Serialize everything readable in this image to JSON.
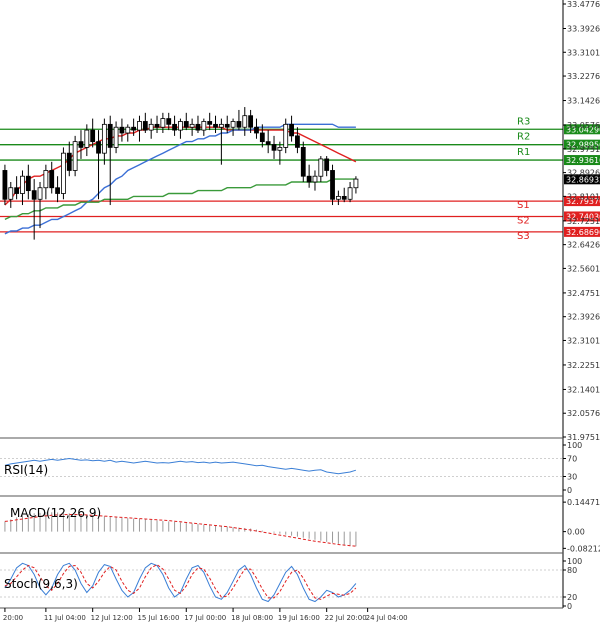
{
  "chart_data": [
    {
      "type": "candlestick",
      "panel": "price",
      "y_ticks": [
        "33.47760",
        "33.39260",
        "33.31010",
        "33.22760",
        "33.14260",
        "33.05760",
        "32.97510",
        "32.89260",
        "32.81010",
        "32.72510",
        "32.64260",
        "32.56010",
        "32.47510",
        "32.39260",
        "32.31010",
        "32.22510",
        "32.14010",
        "32.05760",
        "31.97510"
      ],
      "ylim": [
        31.9751,
        33.4776
      ],
      "levels": [
        {
          "name": "R3",
          "value": 33.0429,
          "label": "33.04290",
          "color": "#1a8a1a"
        },
        {
          "name": "R2",
          "value": 32.9895,
          "label": "32.98950",
          "color": "#1a8a1a"
        },
        {
          "name": "R1",
          "value": 32.9361,
          "label": "32.93610",
          "color": "#1a8a1a"
        },
        {
          "name": "S1",
          "value": 32.7937,
          "label": "32.79370",
          "color": "#e02020"
        },
        {
          "name": "S2",
          "value": 32.7403,
          "label": "32.74030",
          "color": "#e02020"
        },
        {
          "name": "S3",
          "value": 32.6869,
          "label": "32.68690",
          "color": "#e02020"
        }
      ],
      "current_price": {
        "value": 32.8693,
        "label": "32.86932"
      },
      "candles": [
        {
          "o": 32.9,
          "h": 32.92,
          "l": 32.78,
          "c": 32.8
        },
        {
          "o": 32.8,
          "h": 32.86,
          "l": 32.77,
          "c": 32.84
        },
        {
          "o": 32.84,
          "h": 32.88,
          "l": 32.8,
          "c": 32.82
        },
        {
          "o": 32.82,
          "h": 32.9,
          "l": 32.78,
          "c": 32.88
        },
        {
          "o": 32.88,
          "h": 32.92,
          "l": 32.8,
          "c": 32.83
        },
        {
          "o": 32.83,
          "h": 32.87,
          "l": 32.66,
          "c": 32.8
        },
        {
          "o": 32.8,
          "h": 32.86,
          "l": 32.7,
          "c": 32.84
        },
        {
          "o": 32.84,
          "h": 32.92,
          "l": 32.8,
          "c": 32.9
        },
        {
          "o": 32.9,
          "h": 32.93,
          "l": 32.82,
          "c": 32.84
        },
        {
          "o": 32.84,
          "h": 32.88,
          "l": 32.79,
          "c": 32.82
        },
        {
          "o": 32.82,
          "h": 32.98,
          "l": 32.8,
          "c": 32.96
        },
        {
          "o": 32.96,
          "h": 33.0,
          "l": 32.88,
          "c": 32.9
        },
        {
          "o": 32.9,
          "h": 33.02,
          "l": 32.88,
          "c": 33.0
        },
        {
          "o": 33.0,
          "h": 33.04,
          "l": 32.94,
          "c": 32.98
        },
        {
          "o": 32.98,
          "h": 33.06,
          "l": 32.95,
          "c": 33.04
        },
        {
          "o": 33.04,
          "h": 33.08,
          "l": 32.98,
          "c": 33.0
        },
        {
          "o": 33.0,
          "h": 33.04,
          "l": 32.8,
          "c": 32.96
        },
        {
          "o": 32.96,
          "h": 33.08,
          "l": 32.92,
          "c": 33.06
        },
        {
          "o": 33.06,
          "h": 33.09,
          "l": 32.78,
          "c": 32.98
        },
        {
          "o": 32.98,
          "h": 33.07,
          "l": 32.96,
          "c": 33.05
        },
        {
          "o": 33.05,
          "h": 33.08,
          "l": 33.0,
          "c": 33.03
        },
        {
          "o": 33.03,
          "h": 33.06,
          "l": 33.0,
          "c": 33.05
        },
        {
          "o": 33.05,
          "h": 33.08,
          "l": 33.02,
          "c": 33.04
        },
        {
          "o": 33.04,
          "h": 33.09,
          "l": 33.0,
          "c": 33.07
        },
        {
          "o": 33.07,
          "h": 33.1,
          "l": 33.03,
          "c": 33.04
        },
        {
          "o": 33.04,
          "h": 33.08,
          "l": 33.01,
          "c": 33.06
        },
        {
          "o": 33.06,
          "h": 33.09,
          "l": 33.03,
          "c": 33.05
        },
        {
          "o": 33.05,
          "h": 33.1,
          "l": 33.03,
          "c": 33.08
        },
        {
          "o": 33.08,
          "h": 33.1,
          "l": 33.04,
          "c": 33.06
        },
        {
          "o": 33.06,
          "h": 33.09,
          "l": 33.02,
          "c": 33.04
        },
        {
          "o": 33.04,
          "h": 33.08,
          "l": 33.01,
          "c": 33.07
        },
        {
          "o": 33.07,
          "h": 33.1,
          "l": 33.04,
          "c": 33.05
        },
        {
          "o": 33.05,
          "h": 33.08,
          "l": 33.02,
          "c": 33.06
        },
        {
          "o": 33.06,
          "h": 33.09,
          "l": 33.03,
          "c": 33.04
        },
        {
          "o": 33.04,
          "h": 33.08,
          "l": 33.02,
          "c": 33.07
        },
        {
          "o": 33.07,
          "h": 33.1,
          "l": 33.04,
          "c": 33.06
        },
        {
          "o": 33.06,
          "h": 33.09,
          "l": 33.03,
          "c": 33.05
        },
        {
          "o": 33.05,
          "h": 33.08,
          "l": 32.92,
          "c": 33.06
        },
        {
          "o": 33.06,
          "h": 33.09,
          "l": 33.03,
          "c": 33.05
        },
        {
          "o": 33.05,
          "h": 33.08,
          "l": 33.02,
          "c": 33.07
        },
        {
          "o": 33.07,
          "h": 33.11,
          "l": 33.04,
          "c": 33.05
        },
        {
          "o": 33.05,
          "h": 33.12,
          "l": 33.02,
          "c": 33.09
        },
        {
          "o": 33.09,
          "h": 33.11,
          "l": 33.03,
          "c": 33.05
        },
        {
          "o": 33.05,
          "h": 33.08,
          "l": 33.01,
          "c": 33.03
        },
        {
          "o": 33.03,
          "h": 33.06,
          "l": 32.98,
          "c": 33.0
        },
        {
          "o": 33.0,
          "h": 33.04,
          "l": 32.96,
          "c": 32.99
        },
        {
          "o": 32.99,
          "h": 33.02,
          "l": 32.94,
          "c": 32.97
        },
        {
          "o": 32.97,
          "h": 33.0,
          "l": 32.92,
          "c": 32.98
        },
        {
          "o": 32.98,
          "h": 33.08,
          "l": 32.96,
          "c": 33.06
        },
        {
          "o": 33.06,
          "h": 33.09,
          "l": 33.0,
          "c": 33.02
        },
        {
          "o": 33.02,
          "h": 33.05,
          "l": 32.96,
          "c": 32.98
        },
        {
          "o": 32.98,
          "h": 33.0,
          "l": 32.86,
          "c": 32.88
        },
        {
          "o": 32.88,
          "h": 32.92,
          "l": 32.84,
          "c": 32.86
        },
        {
          "o": 32.86,
          "h": 32.9,
          "l": 32.83,
          "c": 32.88
        },
        {
          "o": 32.88,
          "h": 32.95,
          "l": 32.86,
          "c": 32.94
        },
        {
          "o": 32.94,
          "h": 32.95,
          "l": 32.88,
          "c": 32.9
        },
        {
          "o": 32.9,
          "h": 32.92,
          "l": 32.78,
          "c": 32.8
        },
        {
          "o": 32.8,
          "h": 32.83,
          "l": 32.78,
          "c": 32.81
        },
        {
          "o": 32.81,
          "h": 32.84,
          "l": 32.79,
          "c": 32.8
        },
        {
          "o": 32.8,
          "h": 32.86,
          "l": 32.79,
          "c": 32.84
        },
        {
          "o": 32.84,
          "h": 32.88,
          "l": 32.82,
          "c": 32.87
        }
      ],
      "series": [
        {
          "color": "#e02020",
          "values": [
            32.78,
            32.8,
            32.83,
            32.85,
            32.87,
            32.88,
            32.88,
            32.89,
            32.9,
            32.91,
            32.92,
            32.94,
            32.96,
            32.97,
            32.98,
            32.99,
            33.0,
            33.01,
            33.01,
            33.02,
            33.02,
            33.03,
            33.03,
            33.04,
            33.04,
            33.05,
            33.05,
            33.05,
            33.05,
            33.05,
            33.05,
            33.05,
            33.05,
            33.05,
            33.05,
            33.05,
            33.05,
            33.05,
            33.04,
            33.04,
            33.04,
            33.04,
            33.04,
            33.04,
            33.04,
            33.04,
            33.04,
            33.04,
            33.04,
            33.03,
            33.03,
            33.02,
            33.01,
            33.0,
            32.99,
            32.98,
            32.97,
            32.96,
            32.95,
            32.94,
            32.93
          ]
        },
        {
          "color": "#3b6fd6",
          "values": [
            32.68,
            32.69,
            32.69,
            32.7,
            32.7,
            32.71,
            32.71,
            32.72,
            32.73,
            32.73,
            32.74,
            32.75,
            32.76,
            32.77,
            32.79,
            32.8,
            32.82,
            32.84,
            32.85,
            32.87,
            32.88,
            32.9,
            32.91,
            32.92,
            32.93,
            32.94,
            32.95,
            32.96,
            32.97,
            32.98,
            32.99,
            33.0,
            33.0,
            33.01,
            33.01,
            33.02,
            33.02,
            33.03,
            33.03,
            33.04,
            33.04,
            33.04,
            33.04,
            33.05,
            33.05,
            33.05,
            33.05,
            33.05,
            33.06,
            33.06,
            33.06,
            33.06,
            33.06,
            33.06,
            33.06,
            33.06,
            33.06,
            33.05,
            33.05,
            33.05,
            33.05
          ]
        },
        {
          "color": "#3a9a3a",
          "values": [
            32.73,
            32.74,
            32.74,
            32.75,
            32.75,
            32.76,
            32.76,
            32.77,
            32.77,
            32.77,
            32.78,
            32.78,
            32.78,
            32.79,
            32.79,
            32.79,
            32.79,
            32.8,
            32.8,
            32.8,
            32.8,
            32.8,
            32.81,
            32.81,
            32.81,
            32.81,
            32.81,
            32.81,
            32.82,
            32.82,
            32.82,
            32.82,
            32.82,
            32.83,
            32.83,
            32.83,
            32.83,
            32.83,
            32.84,
            32.84,
            32.84,
            32.84,
            32.84,
            32.85,
            32.85,
            32.85,
            32.85,
            32.85,
            32.85,
            32.86,
            32.86,
            32.86,
            32.86,
            32.86,
            32.86,
            32.86,
            32.87,
            32.87,
            32.87,
            32.87,
            32.87
          ]
        }
      ]
    },
    {
      "type": "line",
      "panel": "rsi",
      "title": "RSI(14)",
      "y_ticks": [
        "100",
        "70",
        "30",
        "0"
      ],
      "ylim": [
        0,
        100
      ],
      "series": [
        {
          "color": "#3b7fd6",
          "values": [
            55,
            58,
            60,
            62,
            64,
            66,
            64,
            66,
            68,
            66,
            68,
            70,
            68,
            66,
            67,
            65,
            66,
            64,
            66,
            62,
            64,
            62,
            60,
            62,
            64,
            62,
            60,
            61,
            60,
            62,
            64,
            62,
            63,
            61,
            62,
            60,
            62,
            60,
            61,
            62,
            60,
            58,
            56,
            54,
            55,
            52,
            50,
            48,
            46,
            48,
            46,
            44,
            42,
            44,
            45,
            40,
            38,
            36,
            38,
            40,
            44
          ]
        }
      ]
    },
    {
      "type": "bar",
      "panel": "macd",
      "title": "MACD(12,26,9)",
      "y_ticks": [
        "0.144719",
        "0.00",
        "-0.08212"
      ],
      "ylim": [
        -0.1,
        0.165
      ],
      "values": [
        0.05,
        0.06,
        0.07,
        0.08,
        0.085,
        0.09,
        0.092,
        0.095,
        0.095,
        0.094,
        0.093,
        0.09,
        0.088,
        0.085,
        0.083,
        0.08,
        0.078,
        0.075,
        0.073,
        0.07,
        0.068,
        0.066,
        0.064,
        0.062,
        0.06,
        0.058,
        0.055,
        0.052,
        0.05,
        0.048,
        0.045,
        0.042,
        0.04,
        0.038,
        0.035,
        0.032,
        0.03,
        0.028,
        0.025,
        0.022,
        0.02,
        0.018,
        0.015,
        0.01,
        0.005,
        0.0,
        -0.005,
        -0.01,
        -0.015,
        -0.02,
        -0.025,
        -0.03,
        -0.035,
        -0.04,
        -0.045,
        -0.05,
        -0.055,
        -0.06,
        -0.065,
        -0.07,
        -0.072
      ],
      "signal": [
        0.05,
        0.053,
        0.058,
        0.062,
        0.066,
        0.07,
        0.074,
        0.077,
        0.08,
        0.082,
        0.083,
        0.084,
        0.084,
        0.083,
        0.082,
        0.08,
        0.078,
        0.076,
        0.074,
        0.072,
        0.07,
        0.068,
        0.066,
        0.064,
        0.062,
        0.06,
        0.058,
        0.056,
        0.054,
        0.051,
        0.048,
        0.045,
        0.042,
        0.039,
        0.036,
        0.033,
        0.03,
        0.027,
        0.024,
        0.02,
        0.016,
        0.012,
        0.008,
        0.003,
        -0.002,
        -0.007,
        -0.012,
        -0.017,
        -0.022,
        -0.027,
        -0.032,
        -0.037,
        -0.042,
        -0.047,
        -0.051,
        -0.055,
        -0.059,
        -0.063,
        -0.066,
        -0.069,
        -0.071
      ]
    },
    {
      "type": "line",
      "panel": "stoch",
      "title": "Stoch(9,6,3)",
      "y_ticks": [
        "100",
        "80",
        "20",
        "0"
      ],
      "ylim": [
        0,
        100
      ],
      "series": [
        {
          "color": "#3b7fd6",
          "values": [
            40,
            60,
            85,
            95,
            90,
            70,
            40,
            25,
            40,
            70,
            90,
            95,
            80,
            50,
            30,
            45,
            75,
            92,
            88,
            60,
            35,
            20,
            30,
            60,
            85,
            95,
            90,
            70,
            40,
            20,
            30,
            60,
            85,
            90,
            75,
            45,
            20,
            15,
            30,
            55,
            80,
            90,
            70,
            40,
            15,
            10,
            25,
            50,
            75,
            88,
            70,
            40,
            15,
            10,
            20,
            35,
            30,
            20,
            25,
            35,
            50
          ]
        },
        {
          "color": "#e02020",
          "values": [
            45,
            50,
            65,
            80,
            90,
            85,
            65,
            45,
            35,
            50,
            72,
            88,
            90,
            75,
            50,
            40,
            55,
            75,
            88,
            80,
            55,
            35,
            28,
            40,
            65,
            85,
            92,
            82,
            60,
            35,
            28,
            45,
            70,
            85,
            82,
            62,
            38,
            20,
            22,
            40,
            62,
            82,
            82,
            62,
            38,
            18,
            18,
            32,
            55,
            75,
            80,
            62,
            38,
            18,
            15,
            22,
            28,
            26,
            24,
            28,
            40
          ]
        }
      ]
    }
  ],
  "x_axis": {
    "ticks": [
      {
        "i": 0,
        "label": "20:00"
      },
      {
        "i": 7,
        "label": "11 Jul 04:00"
      },
      {
        "i": 15,
        "label": "12 Jul 12:00"
      },
      {
        "i": 23,
        "label": "15 Jul 16:00"
      },
      {
        "i": 31,
        "label": "17 Jul 00:00"
      },
      {
        "i": 39,
        "label": "18 Jul 08:00"
      },
      {
        "i": 47,
        "label": "19 Jul 16:00"
      },
      {
        "i": 55,
        "label": "22 Jul 20:00"
      },
      {
        "i": 62,
        "label": "24 Jul 04:00"
      }
    ]
  },
  "colors": {
    "up_candle": "#ffffff",
    "down_candle": "#000000",
    "candle_outline": "#000000",
    "support": "#e02020",
    "resistance": "#1a8a1a",
    "current_price_bg": "#000000"
  }
}
